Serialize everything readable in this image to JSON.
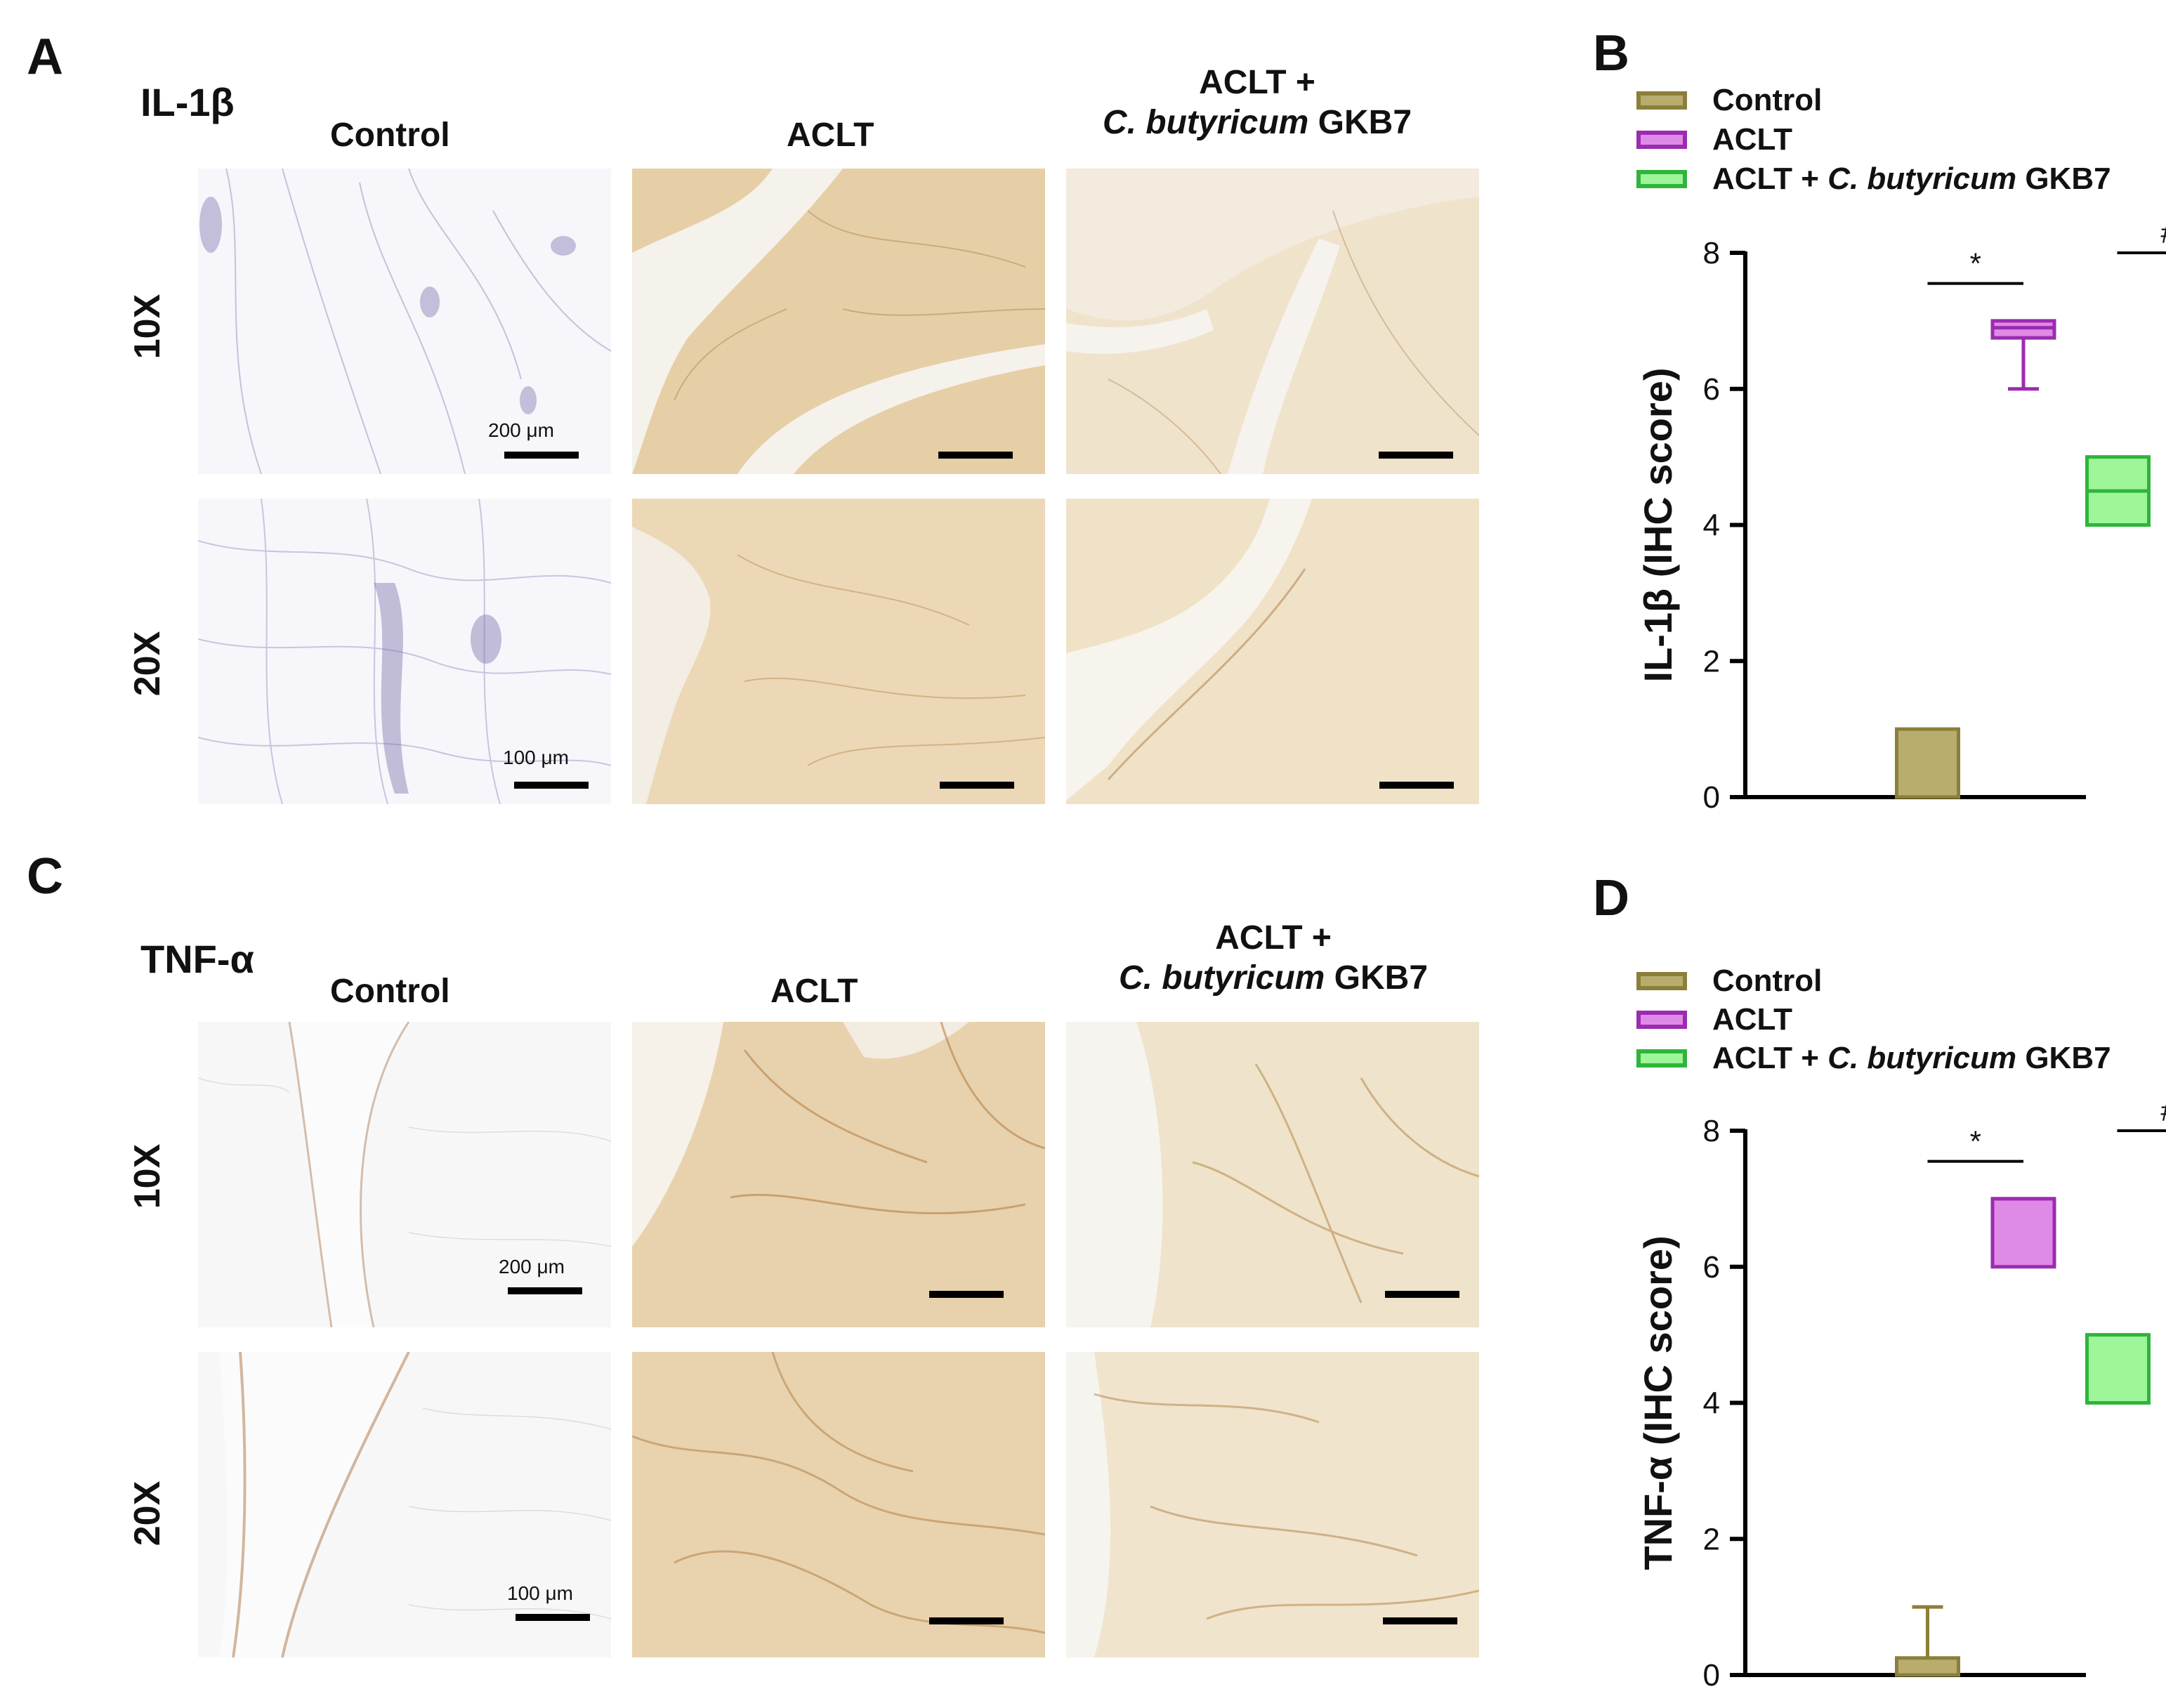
{
  "panels": {
    "A": {
      "letter": "A",
      "marker": "IL-1β",
      "columns": [
        {
          "text": "Control"
        },
        {
          "text": "ACLT"
        },
        {
          "line1": "ACLT +",
          "italic": "C. butyricum",
          "suffix": " GKB7"
        }
      ],
      "rows": [
        "10X",
        "20X"
      ],
      "scale_labels": [
        "200 μm",
        "100 μm"
      ]
    },
    "C": {
      "letter": "C",
      "marker": "TNF-α",
      "columns": [
        {
          "text": "Control"
        },
        {
          "text": "ACLT"
        },
        {
          "line1": "ACLT +",
          "italic": "C. butyricum",
          "suffix": " GKB7"
        }
      ],
      "rows": [
        "10X",
        "20X"
      ],
      "scale_labels": [
        "200 μm",
        "100 μm"
      ]
    },
    "B": {
      "letter": "B"
    },
    "D": {
      "letter": "D"
    }
  },
  "legend": [
    {
      "name": "Control",
      "fill": "#b9ad6e",
      "stroke": "#8c7f3a"
    },
    {
      "name": "ACLT",
      "fill": "#e08ae8",
      "stroke": "#9b2cb0"
    },
    {
      "name_prefix": "ACLT + ",
      "name_italic": "C. butyricum",
      "name_suffix": " GKB7",
      "fill": "#9ef59a",
      "stroke": "#2fb53a"
    }
  ],
  "chart_data": [
    {
      "type": "box",
      "panel": "B",
      "ylabel": "IL-1β (IHC score)",
      "ylim": [
        0,
        8
      ],
      "yticks": [
        0,
        2,
        4,
        6,
        8
      ],
      "groups": [
        {
          "name": "Control",
          "min": 0,
          "q1": 0,
          "median": 0,
          "q3": 1,
          "max": 1
        },
        {
          "name": "ACLT",
          "min": 6,
          "q1": 6.75,
          "median": 6.9,
          "q3": 7,
          "max": 7
        },
        {
          "name": "ACLT + C. butyricum GKB7",
          "min": 4,
          "q1": 4,
          "median": 4.5,
          "q3": 5,
          "max": 5
        }
      ],
      "significance": [
        {
          "between": [
            "Control",
            "ACLT"
          ],
          "symbol": "*"
        },
        {
          "between": [
            "ACLT",
            "ACLT + C. butyricum GKB7"
          ],
          "symbol": "#"
        }
      ]
    },
    {
      "type": "box",
      "panel": "D",
      "ylabel": "TNF-α (IHC score)",
      "ylim": [
        0,
        8
      ],
      "yticks": [
        0,
        2,
        4,
        6,
        8
      ],
      "groups": [
        {
          "name": "Control",
          "min": 0,
          "q1": 0,
          "median": 0,
          "q3": 0.25,
          "max": 1
        },
        {
          "name": "ACLT",
          "min": 6,
          "q1": 6,
          "median": 7,
          "q3": 7,
          "max": 7
        },
        {
          "name": "ACLT + C. butyricum GKB7",
          "min": 4,
          "q1": 4,
          "median": 4,
          "q3": 5,
          "max": 5
        }
      ],
      "significance": [
        {
          "between": [
            "Control",
            "ACLT"
          ],
          "symbol": "*"
        },
        {
          "between": [
            "ACLT",
            "ACLT + C. butyricum GKB7"
          ],
          "symbol": "#"
        }
      ]
    }
  ]
}
